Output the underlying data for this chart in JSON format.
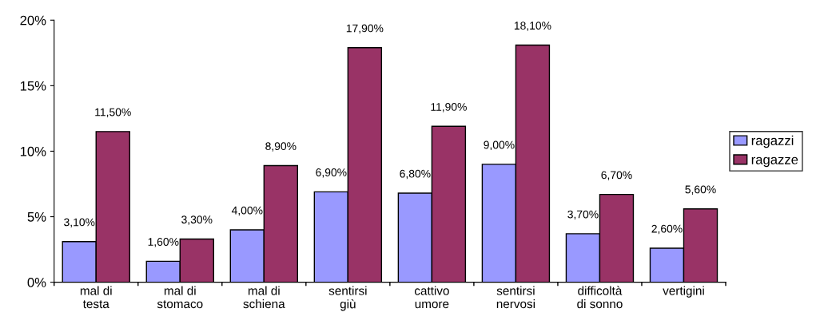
{
  "chart_data": {
    "type": "bar",
    "categories": [
      "mal di\ntesta",
      "mal di\nstomaco",
      "mal di\nschiena",
      "sentirsi\ngiù",
      "cattivo\numore",
      "sentirsi\nnervosi",
      "difficoltà\ndi sonno",
      "vertigini"
    ],
    "series": [
      {
        "name": "ragazzi",
        "color": "#9999ff",
        "values": [
          3.1,
          1.6,
          4.0,
          6.9,
          6.8,
          9.0,
          3.7,
          2.6
        ],
        "value_labels": [
          "3,10%",
          "1,60%",
          "4,00%",
          "6,90%",
          "6,80%",
          "9,00%",
          "3,70%",
          "2,60%"
        ]
      },
      {
        "name": "ragazze",
        "color": "#993366",
        "values": [
          11.5,
          3.3,
          8.9,
          17.9,
          11.9,
          18.1,
          6.7,
          5.6
        ],
        "value_labels": [
          "11,50%",
          "3,30%",
          "8,90%",
          "17,90%",
          "11,90%",
          "18,10%",
          "6,70%",
          "5,60%"
        ]
      }
    ],
    "ylim": [
      0,
      20
    ],
    "yticks": [
      {
        "value": 0,
        "label": "0%"
      },
      {
        "value": 5,
        "label": "5%"
      },
      {
        "value": 10,
        "label": "10%"
      },
      {
        "value": 15,
        "label": "15%"
      },
      {
        "value": 20,
        "label": "20%"
      }
    ],
    "grid": false,
    "legend": "right"
  }
}
